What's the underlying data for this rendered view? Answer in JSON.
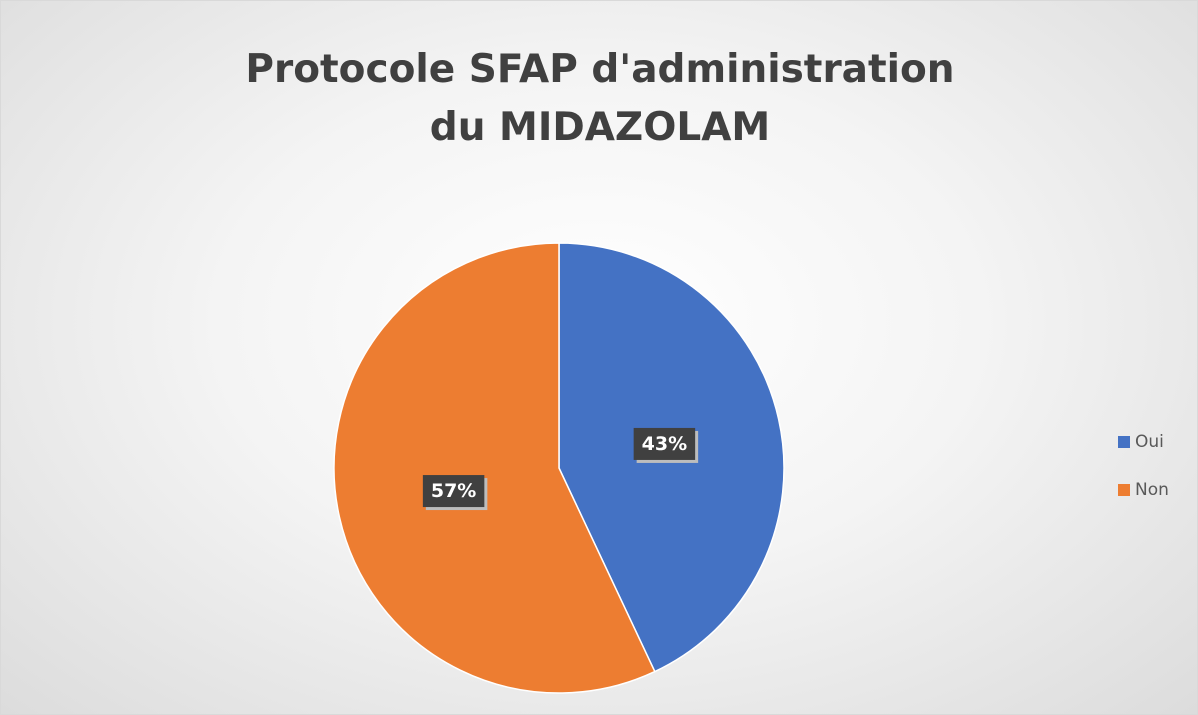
{
  "chart_data": {
    "type": "pie",
    "title": "Protocole SFAP d'administration du MIDAZOLAM",
    "categories": [
      "Oui",
      "Non"
    ],
    "values": [
      43,
      57
    ],
    "value_labels": [
      "43%",
      "57%"
    ],
    "colors": [
      "#4472c4",
      "#ed7d31"
    ],
    "legend": "right"
  }
}
